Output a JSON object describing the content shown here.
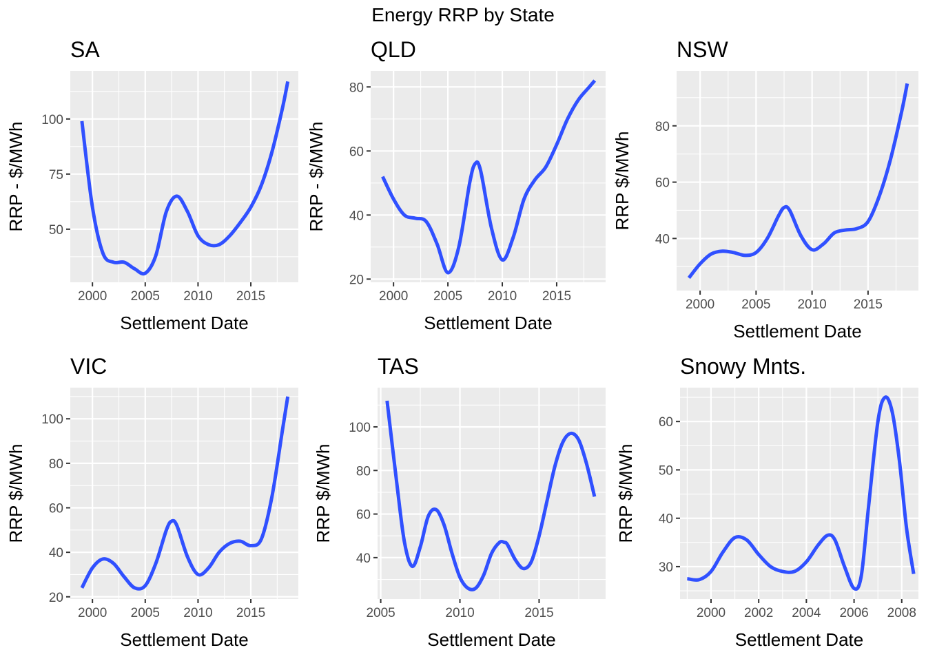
{
  "title": "Energy RRP by State",
  "colors": {
    "line": "#3050FF",
    "panel_bg": "#EBEBEB",
    "grid": "#FFFFFF"
  },
  "chart_data": [
    {
      "type": "line",
      "title": "SA",
      "xlabel": "Settlement Date",
      "ylabel": "RRP - $/MWh",
      "xlim": [
        1997.9,
        2019.5
      ],
      "ylim": [
        25.9,
        121.8
      ],
      "xticks": [
        2000,
        2005,
        2010,
        2015
      ],
      "yticks": [
        50,
        75,
        100
      ],
      "x": [
        1999,
        2000,
        2001,
        2002,
        2003,
        2004,
        2005,
        2006,
        2007,
        2008,
        2009,
        2010,
        2011,
        2012,
        2013,
        2014,
        2015,
        2016,
        2017,
        2018,
        2018.5
      ],
      "y": [
        99,
        60,
        39,
        35,
        35,
        32,
        30,
        38,
        58,
        65,
        58,
        47,
        43,
        43,
        47,
        53,
        60,
        70,
        85,
        105,
        117
      ]
    },
    {
      "type": "line",
      "title": "QLD",
      "xlabel": "Settlement Date",
      "ylabel": "RRP - $/MWh",
      "xlim": [
        1997.9,
        2019.5
      ],
      "ylim": [
        19,
        85
      ],
      "xticks": [
        2000,
        2005,
        2010,
        2015
      ],
      "yticks": [
        20,
        40,
        60,
        80
      ],
      "x": [
        1999,
        2000,
        2001,
        2002,
        2003,
        2004,
        2005,
        2006,
        2007,
        2007.5,
        2008,
        2009,
        2010,
        2011,
        2012,
        2013,
        2014,
        2015,
        2016,
        2017,
        2018,
        2018.5
      ],
      "y": [
        52,
        45,
        40,
        39,
        38,
        31,
        22,
        30,
        50,
        56,
        54,
        36,
        26,
        33,
        45,
        51,
        55,
        62,
        70,
        76,
        80,
        82
      ]
    },
    {
      "type": "line",
      "title": "NSW",
      "xlabel": "Settlement Date",
      "ylabel": "RRP $/MWh",
      "xlim": [
        1997.9,
        2019.5
      ],
      "ylim": [
        21.5,
        99.5
      ],
      "xticks": [
        2000,
        2005,
        2010,
        2015
      ],
      "yticks": [
        40,
        60,
        80
      ],
      "x": [
        1999,
        2000,
        2001,
        2002,
        2003,
        2004,
        2005,
        2006,
        2007,
        2007.5,
        2008,
        2009,
        2010,
        2011,
        2012,
        2013,
        2014,
        2015,
        2016,
        2017,
        2018,
        2018.5
      ],
      "y": [
        26,
        31,
        34.5,
        35.5,
        35,
        34,
        35,
        40,
        48,
        51,
        50,
        41,
        36,
        38,
        42,
        43,
        43.5,
        46,
        55,
        68,
        85,
        95
      ]
    },
    {
      "type": "line",
      "title": "VIC",
      "xlabel": "Settlement Date",
      "ylabel": "RRP $/MWh",
      "xlim": [
        1997.9,
        2019.5
      ],
      "ylim": [
        19,
        114
      ],
      "xticks": [
        2000,
        2005,
        2010,
        2015
      ],
      "yticks": [
        20,
        40,
        60,
        80,
        100
      ],
      "x": [
        1999,
        2000,
        2001,
        2002,
        2003,
        2004,
        2005,
        2006,
        2007,
        2007.5,
        2008,
        2009,
        2010,
        2011,
        2012,
        2013,
        2014,
        2015,
        2016,
        2017,
        2018,
        2018.5
      ],
      "y": [
        24,
        33,
        37,
        35,
        29,
        24,
        25,
        35,
        50,
        54,
        52,
        38,
        30,
        33,
        40,
        44,
        45,
        43,
        46,
        65,
        95,
        110
      ]
    },
    {
      "type": "line",
      "title": "TAS",
      "xlabel": "Settlement Date",
      "ylabel": "RRP $/MWh",
      "xlim": [
        2004.8,
        2019.2
      ],
      "ylim": [
        21,
        118
      ],
      "xticks": [
        2005,
        2010,
        2015
      ],
      "yticks": [
        40,
        60,
        80,
        100
      ],
      "x": [
        2005.4,
        2006,
        2006.5,
        2007,
        2007.5,
        2008,
        2008.5,
        2009,
        2009.5,
        2010,
        2010.5,
        2011,
        2011.5,
        2012,
        2012.5,
        2012.8,
        2013,
        2013.5,
        2014,
        2014.5,
        2015,
        2015.5,
        2016,
        2016.5,
        2017,
        2017.5,
        2018,
        2018.5
      ],
      "y": [
        112,
        75,
        47,
        36,
        45,
        59,
        62,
        55,
        42,
        31,
        26,
        26,
        32,
        42,
        47,
        47,
        46,
        39,
        35,
        38,
        50,
        66,
        82,
        93,
        97,
        94,
        83,
        68
      ]
    },
    {
      "type": "line",
      "title": "Snowy Mnts.",
      "xlabel": "Settlement Date",
      "ylabel": "RRP $/MWh",
      "xlim": [
        1998.7,
        2008.7
      ],
      "ylim": [
        23.3,
        67
      ],
      "xticks": [
        2000,
        2002,
        2004,
        2006,
        2008
      ],
      "xtick_labels": [
        "2000",
        "2002",
        "2004",
        "2006",
        "2008"
      ],
      "yticks": [
        30,
        40,
        50,
        60
      ],
      "x": [
        1999,
        1999.5,
        2000,
        2000.5,
        2001,
        2001.5,
        2002,
        2002.5,
        2003,
        2003.5,
        2004,
        2004.5,
        2004.9,
        2005.2,
        2005.6,
        2006,
        2006.3,
        2006.6,
        2007,
        2007.3,
        2007.6,
        2007.9,
        2008.2,
        2008.5
      ],
      "y": [
        27.5,
        27.3,
        29,
        33,
        36,
        35.5,
        32.5,
        30,
        29,
        29,
        31,
        34.5,
        36.5,
        35.5,
        30,
        25.5,
        28,
        42,
        60,
        65,
        62,
        52,
        38,
        28.5
      ]
    }
  ]
}
